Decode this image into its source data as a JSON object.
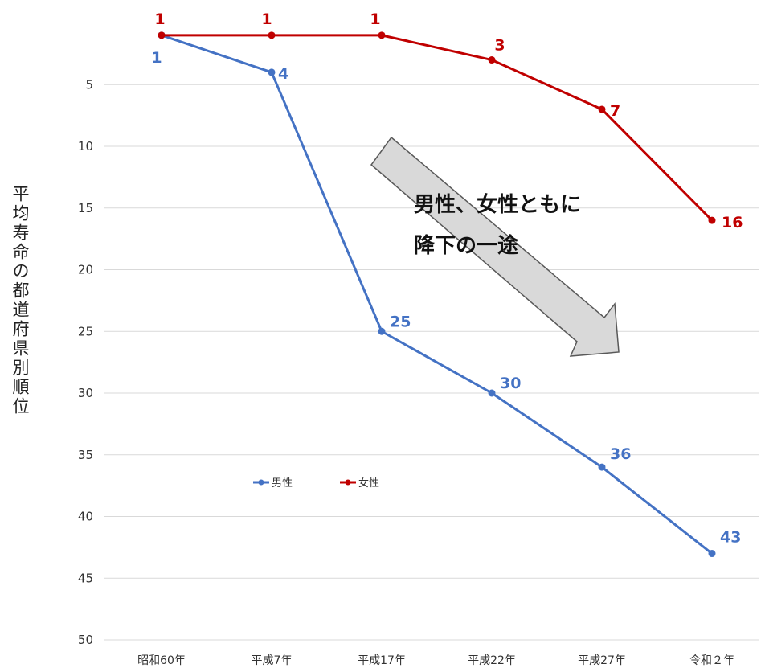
{
  "chart_data": {
    "type": "line",
    "ylabel": "平均寿命の都道府県別順位",
    "ylim": [
      50,
      0
    ],
    "yreverse": true,
    "yticks": [
      5,
      10,
      15,
      20,
      25,
      30,
      35,
      40,
      45,
      50
    ],
    "grid": true,
    "categories": [
      "昭和60年",
      "平成7年",
      "平成17年",
      "平成22年",
      "平成27年",
      "令和２年"
    ],
    "series": [
      {
        "name": "男性",
        "color": "#4472C4",
        "values": [
          1,
          4,
          25,
          30,
          36,
          43
        ]
      },
      {
        "name": "女性",
        "color": "#C00000",
        "values": [
          1,
          1,
          1,
          3,
          7,
          16
        ]
      }
    ],
    "legend": "center-left",
    "annotation": {
      "lines": [
        "男性、女性ともに",
        "降下の一途"
      ]
    }
  }
}
